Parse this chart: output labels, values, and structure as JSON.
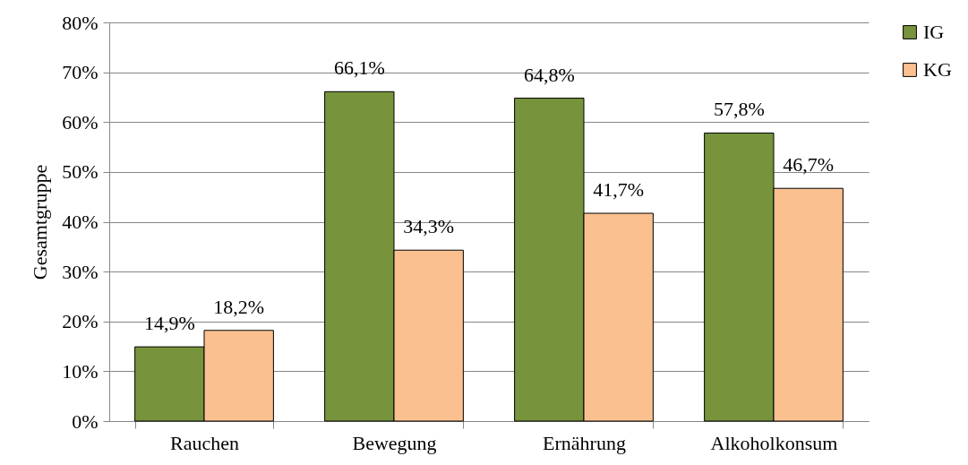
{
  "chart_data": {
    "type": "bar",
    "ylabel": "Gesamtgruppe",
    "categories": [
      "Rauchen",
      "Bewegung",
      "Ernährung",
      "Alkoholkonsum"
    ],
    "series": [
      {
        "name": "IG",
        "color": "#77933c",
        "values": [
          14.9,
          66.1,
          64.8,
          57.8
        ],
        "value_labels": [
          "14,9%",
          "66,1%",
          "64,8%",
          "57,8%"
        ]
      },
      {
        "name": "KG",
        "color": "#fac090",
        "values": [
          18.2,
          34.3,
          41.7,
          46.7
        ],
        "value_labels": [
          "18,2%",
          "34,3%",
          "41,7%",
          "46,7%"
        ]
      }
    ],
    "ylim": [
      0,
      80
    ],
    "yticks": [
      {
        "value": 0,
        "label": "0%"
      },
      {
        "value": 10,
        "label": "10%"
      },
      {
        "value": 20,
        "label": "20%"
      },
      {
        "value": 30,
        "label": "30%"
      },
      {
        "value": 40,
        "label": "40%"
      },
      {
        "value": 50,
        "label": "50%"
      },
      {
        "value": 60,
        "label": "60%"
      },
      {
        "value": 70,
        "label": "70%"
      },
      {
        "value": 80,
        "label": "80%"
      }
    ],
    "grid": "y",
    "legend": "right"
  }
}
